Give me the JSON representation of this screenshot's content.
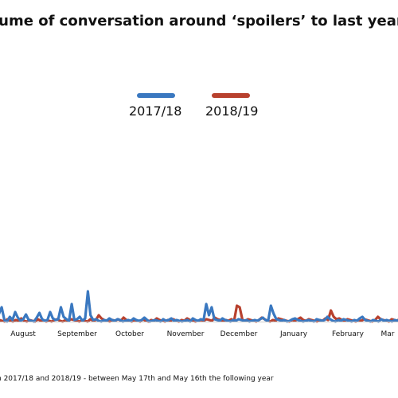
{
  "title": "lume of conversation around ‘spoilers’ to last year",
  "footnote": "n 2017/18 and 2018/19 - between May 17th and May 16th the following year",
  "legend": [
    {
      "label": "2017/18",
      "color": "#3a78c0"
    },
    {
      "label": "2018/19",
      "color": "#b8412e"
    }
  ],
  "chart_data": {
    "type": "line",
    "title": "lume of conversation around ‘spoilers’ to last year",
    "x_ticks": [
      "August",
      "September",
      "October",
      "November",
      "December",
      "January",
      "February",
      "Mar"
    ],
    "grid": false,
    "legend_position": "top-center",
    "series": [
      {
        "name": "2017/18",
        "color": "#3a78c0",
        "values": [
          4,
          3,
          10,
          18,
          2,
          0,
          6,
          2,
          12,
          5,
          1,
          3,
          9,
          2,
          1,
          0,
          5,
          11,
          3,
          1,
          2,
          12,
          4,
          2,
          3,
          18,
          6,
          3,
          1,
          22,
          2,
          3,
          6,
          1,
          4,
          38,
          8,
          2,
          3,
          1,
          0,
          2,
          1,
          4,
          2,
          1,
          3,
          2,
          0,
          1,
          2,
          1,
          4,
          2,
          1,
          2,
          5,
          2,
          0,
          1,
          2,
          1,
          0,
          3,
          1,
          2,
          4,
          1,
          2,
          1,
          0,
          1,
          2,
          0,
          4,
          2,
          1,
          3,
          2,
          22,
          8,
          18,
          3,
          2,
          1,
          4,
          2,
          1,
          0,
          2,
          1,
          3,
          2,
          1,
          2,
          0,
          1,
          2,
          1,
          3,
          5,
          2,
          1,
          20,
          10,
          3,
          2,
          1,
          2,
          0,
          1,
          3,
          4,
          2,
          1,
          0,
          1,
          2,
          1,
          0,
          3,
          2,
          1,
          2,
          6,
          3,
          1,
          0,
          2,
          1,
          3,
          2,
          1,
          0,
          2,
          1,
          4,
          6,
          2,
          1,
          0,
          2,
          1,
          0,
          3,
          1,
          2,
          1,
          0,
          2,
          1,
          3,
          2
        ]
      },
      {
        "name": "2018/19",
        "color": "#b8412e",
        "values": [
          1,
          0,
          2,
          1,
          0,
          3,
          1,
          0,
          2,
          1,
          4,
          1,
          0,
          2,
          1,
          0,
          3,
          1,
          2,
          0,
          1,
          0,
          2,
          3,
          1,
          0,
          2,
          1,
          3,
          2,
          1,
          0,
          2,
          1,
          0,
          3,
          1,
          2,
          8,
          4,
          2,
          1,
          0,
          2,
          1,
          3,
          1,
          5,
          2,
          1,
          0,
          2,
          1,
          0,
          3,
          1,
          0,
          2,
          1,
          4,
          2,
          1,
          0,
          2,
          1,
          3,
          1,
          0,
          2,
          1,
          4,
          2,
          1,
          0,
          1,
          2,
          1,
          3,
          2,
          1,
          5,
          3,
          2,
          1,
          2,
          1,
          3,
          1,
          20,
          18,
          2,
          1,
          3,
          2,
          1,
          0,
          2,
          5,
          3,
          1,
          0,
          2,
          1,
          4,
          3,
          2,
          1,
          0,
          2,
          1,
          3,
          5,
          2,
          1,
          3,
          2,
          1,
          0,
          2,
          1,
          4,
          2,
          14,
          6,
          3,
          4,
          2,
          1,
          3,
          2,
          1,
          0,
          2,
          1,
          3,
          2,
          1,
          0,
          2,
          6,
          3,
          2,
          1,
          0,
          3,
          2,
          1,
          4,
          8
        ]
      }
    ]
  }
}
